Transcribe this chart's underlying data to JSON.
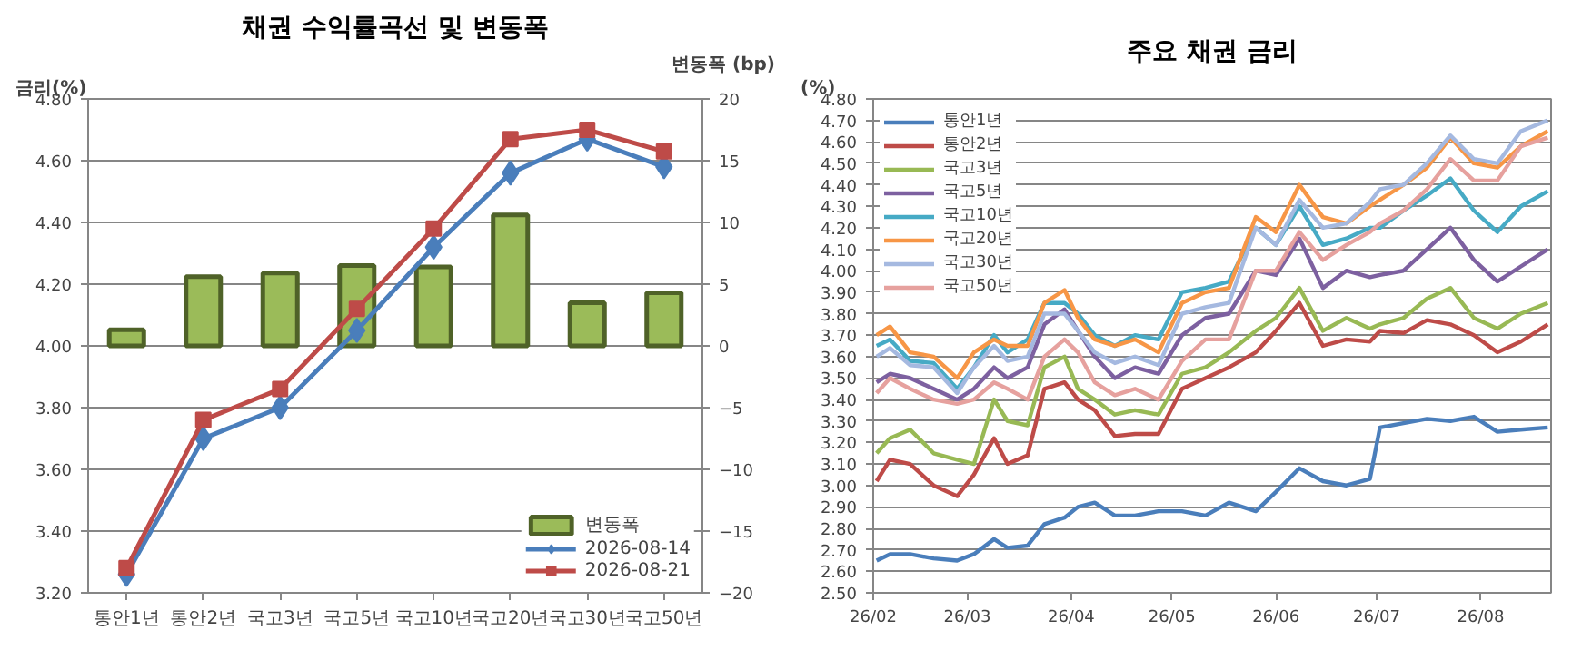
{
  "chart_data": [
    {
      "type": "line",
      "title": "채권 수익률곡선 및 변동폭",
      "ylabel": "금리(%)",
      "y2label": "변동폭 (bp)",
      "categories": [
        "통안1년",
        "통안2년",
        "국고3년",
        "국고5년",
        "국고10년",
        "국고20년",
        "국고30년",
        "국고50년"
      ],
      "series": [
        {
          "name": "변동폭",
          "type": "bar",
          "axis": "y2",
          "color": "#9bbb59",
          "values": [
            1.3,
            5.6,
            5.9,
            6.5,
            6.4,
            10.6,
            3.5,
            4.3
          ]
        },
        {
          "name": "2026-08-14",
          "color": "#4a7ebb",
          "marker": "diamond",
          "values": [
            3.26,
            3.7,
            3.8,
            4.05,
            4.32,
            4.56,
            4.67,
            4.58
          ]
        },
        {
          "name": "2026-08-21",
          "color": "#be4b48",
          "marker": "square",
          "values": [
            3.28,
            3.76,
            3.86,
            4.12,
            4.38,
            4.67,
            4.7,
            4.63
          ]
        }
      ],
      "ylim": [
        3.2,
        4.8
      ],
      "yticks": [
        {
          "value": 3.2,
          "label": "3.20"
        },
        {
          "value": 3.4,
          "label": "3.40"
        },
        {
          "value": 3.6,
          "label": "3.60"
        },
        {
          "value": 3.8,
          "label": "3.80"
        },
        {
          "value": 4.0,
          "label": "4.00"
        },
        {
          "value": 4.2,
          "label": "4.20"
        },
        {
          "value": 4.4,
          "label": "4.40"
        },
        {
          "value": 4.6,
          "label": "4.60"
        },
        {
          "value": 4.8,
          "label": "4.80"
        }
      ],
      "y2lim": [
        -20,
        20
      ],
      "y2ticks": [
        -20,
        -15,
        -10,
        -5,
        0,
        5,
        10,
        15,
        20
      ],
      "grid": "y",
      "legend": "bottom right"
    },
    {
      "type": "line",
      "title": "주요 채권 금리",
      "ylabel": "(%)",
      "x": [
        "2026-02-02",
        "2026-02-06",
        "2026-02-12",
        "2026-02-19",
        "2026-02-26",
        "2026-03-03",
        "2026-03-09",
        "2026-03-13",
        "2026-03-19",
        "2026-03-24",
        "2026-03-30",
        "2026-04-03",
        "2026-04-08",
        "2026-04-14",
        "2026-04-20",
        "2026-04-27",
        "2026-05-04",
        "2026-05-11",
        "2026-05-18",
        "2026-05-26",
        "2026-06-01",
        "2026-06-08",
        "2026-06-15",
        "2026-06-22",
        "2026-06-29",
        "2026-07-02",
        "2026-07-09",
        "2026-07-16",
        "2026-07-23",
        "2026-07-30",
        "2026-08-06",
        "2026-08-13",
        "2026-08-21"
      ],
      "series": [
        {
          "name": "통안1년",
          "color": "#4a7ebb",
          "values": [
            2.65,
            2.68,
            2.68,
            2.66,
            2.65,
            2.68,
            2.75,
            2.71,
            2.72,
            2.82,
            2.85,
            2.9,
            2.92,
            2.86,
            2.86,
            2.88,
            2.88,
            2.86,
            2.92,
            2.88,
            2.97,
            3.08,
            3.02,
            3.0,
            3.03,
            3.27,
            3.29,
            3.31,
            3.3,
            3.32,
            3.25,
            3.26,
            3.27
          ]
        },
        {
          "name": "통안2년",
          "color": "#be4b48",
          "values": [
            3.02,
            3.12,
            3.1,
            3.0,
            2.95,
            3.05,
            3.22,
            3.1,
            3.14,
            3.45,
            3.48,
            3.4,
            3.35,
            3.23,
            3.24,
            3.24,
            3.45,
            3.5,
            3.55,
            3.62,
            3.72,
            3.85,
            3.65,
            3.68,
            3.67,
            3.72,
            3.71,
            3.77,
            3.75,
            3.7,
            3.62,
            3.67,
            3.75
          ]
        },
        {
          "name": "국고3년",
          "color": "#98b954",
          "values": [
            3.15,
            3.22,
            3.26,
            3.15,
            3.12,
            3.1,
            3.4,
            3.3,
            3.28,
            3.55,
            3.6,
            3.45,
            3.4,
            3.33,
            3.35,
            3.33,
            3.52,
            3.55,
            3.62,
            3.72,
            3.78,
            3.92,
            3.72,
            3.78,
            3.73,
            3.75,
            3.78,
            3.87,
            3.92,
            3.78,
            3.73,
            3.8,
            3.85
          ]
        },
        {
          "name": "국고5년",
          "color": "#7d60a0",
          "values": [
            3.48,
            3.52,
            3.5,
            3.45,
            3.4,
            3.45,
            3.55,
            3.5,
            3.55,
            3.75,
            3.82,
            3.72,
            3.6,
            3.5,
            3.55,
            3.52,
            3.7,
            3.78,
            3.8,
            4.0,
            3.98,
            4.15,
            3.92,
            4.0,
            3.97,
            3.98,
            4.0,
            4.1,
            4.2,
            4.05,
            3.95,
            4.02,
            4.1
          ]
        },
        {
          "name": "국고10년",
          "color": "#46aac5",
          "values": [
            3.65,
            3.68,
            3.58,
            3.57,
            3.45,
            3.55,
            3.7,
            3.62,
            3.68,
            3.85,
            3.85,
            3.8,
            3.7,
            3.65,
            3.7,
            3.68,
            3.9,
            3.92,
            3.95,
            4.2,
            4.12,
            4.3,
            4.12,
            4.15,
            4.2,
            4.2,
            4.28,
            4.35,
            4.43,
            4.28,
            4.18,
            4.3,
            4.37
          ]
        },
        {
          "name": "국고20년",
          "color": "#f79646",
          "values": [
            3.7,
            3.74,
            3.62,
            3.6,
            3.5,
            3.62,
            3.68,
            3.65,
            3.65,
            3.85,
            3.91,
            3.78,
            3.68,
            3.65,
            3.68,
            3.62,
            3.85,
            3.9,
            3.92,
            4.25,
            4.18,
            4.4,
            4.25,
            4.22,
            4.3,
            4.33,
            4.4,
            4.48,
            4.62,
            4.5,
            4.48,
            4.58,
            4.65
          ]
        },
        {
          "name": "국고30년",
          "color": "#a5b9e0",
          "values": [
            3.6,
            3.64,
            3.56,
            3.55,
            3.43,
            3.55,
            3.65,
            3.58,
            3.6,
            3.8,
            3.8,
            3.72,
            3.62,
            3.57,
            3.6,
            3.56,
            3.8,
            3.83,
            3.85,
            4.2,
            4.12,
            4.33,
            4.2,
            4.22,
            4.32,
            4.38,
            4.4,
            4.5,
            4.63,
            4.52,
            4.5,
            4.65,
            4.7
          ]
        },
        {
          "name": "국고50년",
          "color": "#e6a19e",
          "values": [
            3.43,
            3.5,
            3.45,
            3.4,
            3.38,
            3.4,
            3.48,
            3.45,
            3.4,
            3.6,
            3.68,
            3.62,
            3.48,
            3.42,
            3.45,
            3.4,
            3.58,
            3.68,
            3.68,
            4.0,
            4.0,
            4.18,
            4.05,
            4.12,
            4.18,
            4.22,
            4.28,
            4.38,
            4.52,
            4.42,
            4.42,
            4.58,
            4.62
          ]
        }
      ],
      "xlim": [
        "2026-02-01",
        "2026-08-22"
      ],
      "xticks": [
        {
          "value": "2026-02-01",
          "label": "26/02"
        },
        {
          "value": "2026-03-01",
          "label": "26/03"
        },
        {
          "value": "2026-04-01",
          "label": "26/04"
        },
        {
          "value": "2026-05-01",
          "label": "26/05"
        },
        {
          "value": "2026-06-01",
          "label": "26/06"
        },
        {
          "value": "2026-07-01",
          "label": "26/07"
        },
        {
          "value": "2026-08-01",
          "label": "26/08"
        }
      ],
      "ylim": [
        2.5,
        4.8
      ],
      "yticks": [
        {
          "value": 2.5,
          "label": "2.50"
        },
        {
          "value": 2.6,
          "label": "2.60"
        },
        {
          "value": 2.7,
          "label": "2.70"
        },
        {
          "value": 2.8,
          "label": "2.80"
        },
        {
          "value": 2.9,
          "label": "2.90"
        },
        {
          "value": 3.0,
          "label": "3.00"
        },
        {
          "value": 3.1,
          "label": "3.10"
        },
        {
          "value": 3.2,
          "label": "3.20"
        },
        {
          "value": 3.3,
          "label": "3.30"
        },
        {
          "value": 3.4,
          "label": "3.40"
        },
        {
          "value": 3.5,
          "label": "3.50"
        },
        {
          "value": 3.6,
          "label": "3.60"
        },
        {
          "value": 3.7,
          "label": "3.70"
        },
        {
          "value": 3.8,
          "label": "3.80"
        },
        {
          "value": 3.9,
          "label": "3.90"
        },
        {
          "value": 4.0,
          "label": "4.00"
        },
        {
          "value": 4.1,
          "label": "4.10"
        },
        {
          "value": 4.2,
          "label": "4.20"
        },
        {
          "value": 4.3,
          "label": "4.30"
        },
        {
          "value": 4.4,
          "label": "4.40"
        },
        {
          "value": 4.5,
          "label": "4.50"
        },
        {
          "value": 4.6,
          "label": "4.60"
        },
        {
          "value": 4.7,
          "label": "4.70"
        },
        {
          "value": 4.8,
          "label": "4.80"
        }
      ],
      "grid": "y",
      "legend": "top left"
    }
  ]
}
